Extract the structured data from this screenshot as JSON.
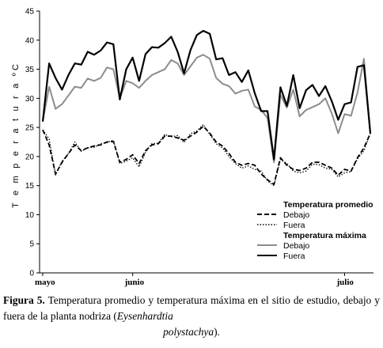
{
  "chart_data": {
    "type": "line",
    "ylabel": "T e m p e r a t u r a  ºC",
    "ylim": [
      0,
      45
    ],
    "yticks": [
      0,
      5,
      10,
      15,
      20,
      25,
      30,
      35,
      40,
      45
    ],
    "x_tick_labels": [
      {
        "label": "mayo",
        "index": 0
      },
      {
        "label": "junio",
        "index": 14
      },
      {
        "label": "julio",
        "index": 47
      }
    ],
    "grid": false,
    "legend_position": "bottom-right",
    "legend": {
      "group1_title": "Temperatura promedio",
      "group1_items": [
        "Debajo",
        "Fuera"
      ],
      "group2_title": "Temperatura máxima",
      "group2_items": [
        "Debajo",
        "Fuera"
      ]
    },
    "series": [
      {
        "name": "Temperatura máxima — Fuera",
        "group": "max",
        "style": "solid-black",
        "values": [
          26.0,
          36.0,
          33.5,
          31.5,
          34.0,
          36.0,
          35.8,
          38.0,
          37.5,
          38.2,
          39.6,
          39.3,
          29.8,
          35.0,
          37.0,
          33.0,
          37.6,
          38.8,
          38.7,
          39.5,
          40.6,
          38.0,
          34.3,
          38.3,
          40.9,
          41.6,
          41.1,
          36.7,
          36.9,
          34.0,
          34.5,
          32.8,
          34.8,
          30.9,
          27.8,
          27.8,
          19.5,
          31.9,
          28.7,
          34.0,
          28.3,
          31.4,
          32.3,
          30.4,
          32.1,
          29.5,
          26.3,
          29.0,
          29.3,
          35.4,
          35.7,
          24.0
        ]
      },
      {
        "name": "Temperatura máxima — Debajo",
        "group": "max",
        "style": "solid-gray",
        "values": [
          26.0,
          32.0,
          28.2,
          29.0,
          30.5,
          32.0,
          31.8,
          33.4,
          33.0,
          33.5,
          35.3,
          35.0,
          30.0,
          33.0,
          32.6,
          31.8,
          33.0,
          34.0,
          34.5,
          35.0,
          36.6,
          36.0,
          34.0,
          35.5,
          37.0,
          37.5,
          36.8,
          33.5,
          32.5,
          32.1,
          30.8,
          31.3,
          31.5,
          28.6,
          28.0,
          26.6,
          19.0,
          30.6,
          28.4,
          31.5,
          26.9,
          28.0,
          28.5,
          29.0,
          30.0,
          27.4,
          24.0,
          27.3,
          27.0,
          31.0,
          36.8,
          24.0
        ]
      },
      {
        "name": "Temperatura promedio — Debajo",
        "group": "avg",
        "style": "dashed-black",
        "values": [
          24.6,
          22.0,
          17.0,
          19.0,
          20.5,
          22.0,
          21.0,
          21.5,
          21.8,
          22.0,
          22.5,
          22.6,
          19.0,
          19.5,
          20.3,
          18.8,
          21.0,
          22.0,
          22.2,
          23.5,
          23.5,
          23.2,
          22.8,
          23.5,
          24.2,
          25.2,
          24.0,
          22.5,
          21.8,
          20.5,
          19.0,
          18.5,
          18.8,
          18.5,
          17.0,
          16.0,
          15.2,
          19.8,
          18.5,
          17.8,
          17.6,
          18.0,
          19.0,
          19.0,
          18.5,
          18.0,
          16.8,
          17.8,
          17.5,
          19.8,
          21.5,
          24.0
        ]
      },
      {
        "name": "Temperatura promedio — Fuera",
        "group": "avg",
        "style": "dotted-black",
        "values": [
          24.6,
          23.0,
          16.8,
          19.2,
          20.5,
          22.5,
          20.9,
          21.5,
          21.6,
          22.2,
          22.4,
          22.8,
          18.8,
          19.2,
          19.8,
          18.2,
          20.7,
          22.2,
          22.3,
          23.8,
          23.4,
          23.6,
          22.4,
          23.9,
          24.4,
          25.5,
          23.8,
          22.2,
          21.5,
          20.0,
          18.8,
          18.0,
          18.4,
          17.8,
          17.5,
          15.8,
          15.0,
          19.5,
          18.8,
          17.5,
          17.2,
          17.5,
          18.7,
          18.6,
          18.0,
          17.8,
          16.5,
          17.2,
          17.4,
          19.6,
          21.0,
          24.0
        ]
      }
    ]
  },
  "caption": {
    "label": "Figura 5.",
    "text_line1": " Temperatura  promedio y temperatura máxima en el sitio de estudio, debajo y fuera de la planta nodriza (",
    "species": "Eysenhardtia",
    "text_line2_italic": "polystachya",
    "text_line2_end": ")."
  }
}
